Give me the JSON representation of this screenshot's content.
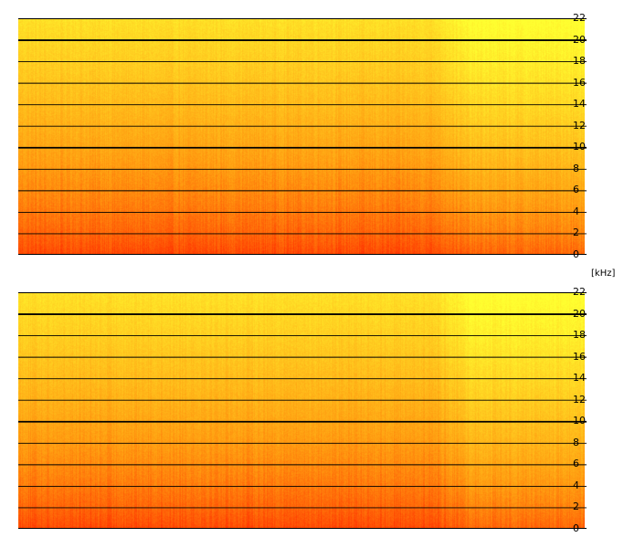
{
  "chart_data": [
    {
      "type": "heatmap",
      "ylim": [
        0,
        22
      ],
      "ytick_labels": [
        "22",
        "20",
        "18",
        "16",
        "14",
        "12",
        "10",
        "8",
        "6",
        "4",
        "2",
        "0"
      ],
      "gridlines_khz": [
        2,
        4,
        6,
        8,
        10,
        12,
        14,
        16,
        18,
        20,
        22
      ],
      "thick_gridlines_khz": [
        10,
        20
      ],
      "colors": {
        "low_energy": "#ffff30",
        "mid_energy": "#ff9a10",
        "high_energy": "#ff3000"
      }
    },
    {
      "type": "heatmap",
      "ylim": [
        0,
        22
      ],
      "ytick_labels": [
        "22",
        "20",
        "18",
        "16",
        "14",
        "12",
        "10",
        "8",
        "6",
        "4",
        "2",
        "0"
      ],
      "gridlines_khz": [
        2,
        4,
        6,
        8,
        10,
        12,
        14,
        16,
        18,
        20,
        22
      ],
      "thick_gridlines_khz": [
        10,
        20
      ],
      "colors": {
        "low_energy": "#ffff30",
        "mid_energy": "#ff9a10",
        "high_energy": "#ff3000"
      }
    }
  ],
  "axis": {
    "unit_label": "[kHz]"
  }
}
